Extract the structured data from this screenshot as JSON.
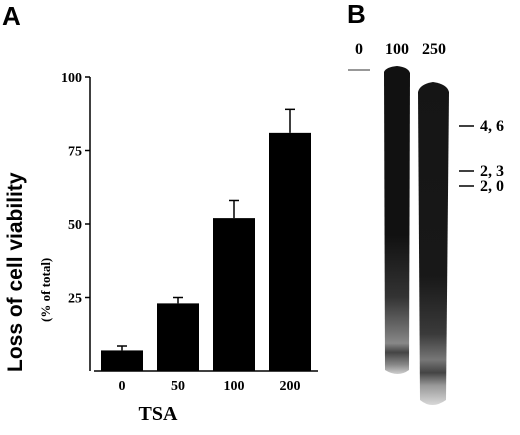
{
  "panel_a": {
    "label": "A"
  },
  "panel_b": {
    "label": "B",
    "lanes": [
      "0",
      "100",
      "250"
    ],
    "markers": [
      "4, 6",
      "2, 3",
      "2, 0"
    ]
  },
  "chart_data": {
    "type": "bar",
    "categories": [
      "0",
      "50",
      "100",
      "200"
    ],
    "values": [
      7,
      23,
      52,
      81
    ],
    "errors": [
      1.5,
      2,
      6,
      8
    ],
    "ylabel": "Loss of cell  viability",
    "ylabel_sub": "(% of  total)",
    "xlabel": "TSA",
    "ylim": [
      0,
      100
    ],
    "yticks": [
      "25",
      "50",
      "75",
      "100"
    ],
    "bar_color": "#000000"
  }
}
